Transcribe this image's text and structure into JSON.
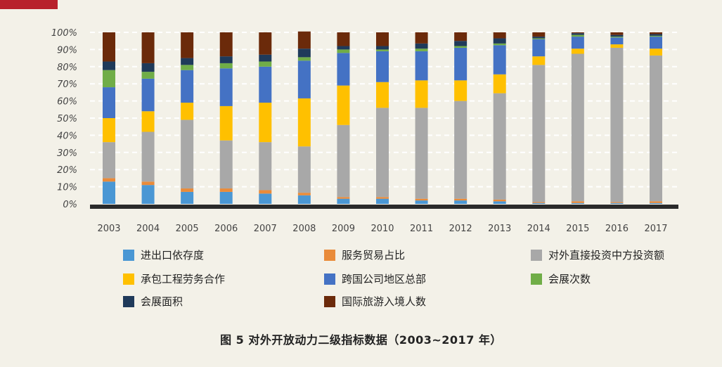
{
  "caption": "图 5 对外开放动力二级指标数据（2003~2017 年）",
  "chart_data": {
    "type": "bar",
    "stacked": true,
    "categories": [
      "2003",
      "2004",
      "2005",
      "2006",
      "2007",
      "2008",
      "2009",
      "2010",
      "2011",
      "2012",
      "2013",
      "2014",
      "2015",
      "2016",
      "2017"
    ],
    "yticks": [
      "0%",
      "10%",
      "20%",
      "30%",
      "40%",
      "50%",
      "60%",
      "70%",
      "80%",
      "90%",
      "100%"
    ],
    "ylim": [
      0,
      100
    ],
    "grid": true,
    "legend_position": "bottom",
    "series": [
      {
        "name": "进出口依存度",
        "color": "#4a97d4",
        "values": [
          13,
          11,
          7,
          7,
          6,
          5,
          3,
          3,
          2,
          2,
          1.5,
          0.5,
          0.5,
          0.5,
          0.5
        ]
      },
      {
        "name": "服务贸易占比",
        "color": "#e98b3a",
        "values": [
          2,
          2,
          2,
          2,
          2,
          1.5,
          1,
          1,
          1,
          1,
          1,
          0.5,
          1,
          0.5,
          1
        ]
      },
      {
        "name": "对外直接投资中方投资额",
        "color": "#a8a8a8",
        "values": [
          21,
          29,
          40,
          28,
          28,
          27,
          42,
          52,
          53,
          57,
          62,
          80,
          86,
          90,
          85
        ]
      },
      {
        "name": "承包工程劳务合作",
        "color": "#ffc000",
        "values": [
          14,
          12,
          10,
          20,
          23,
          28,
          23,
          15,
          16,
          12,
          11,
          5,
          3,
          2,
          4
        ]
      },
      {
        "name": "跨国公司地区总部",
        "color": "#4472c4",
        "values": [
          18,
          19,
          19,
          22,
          21,
          22,
          19,
          18,
          17,
          19,
          17,
          10,
          7,
          4,
          7
        ]
      },
      {
        "name": "会展次数",
        "color": "#70ad47",
        "values": [
          10,
          4,
          3,
          3,
          3,
          2,
          2,
          1,
          1.5,
          1,
          1,
          0.5,
          1,
          0.5,
          0.5
        ]
      },
      {
        "name": "会展面积",
        "color": "#1f3a5a",
        "values": [
          5,
          5,
          4,
          4,
          4,
          5,
          2,
          2,
          3,
          3,
          3,
          1,
          1,
          1,
          1
        ]
      },
      {
        "name": "国际旅游入境人数",
        "color": "#6b2a0a",
        "values": [
          17,
          18,
          15,
          14,
          13,
          10,
          8,
          8,
          6.5,
          5,
          3.5,
          2.5,
          0.5,
          1.5,
          1
        ]
      }
    ]
  }
}
